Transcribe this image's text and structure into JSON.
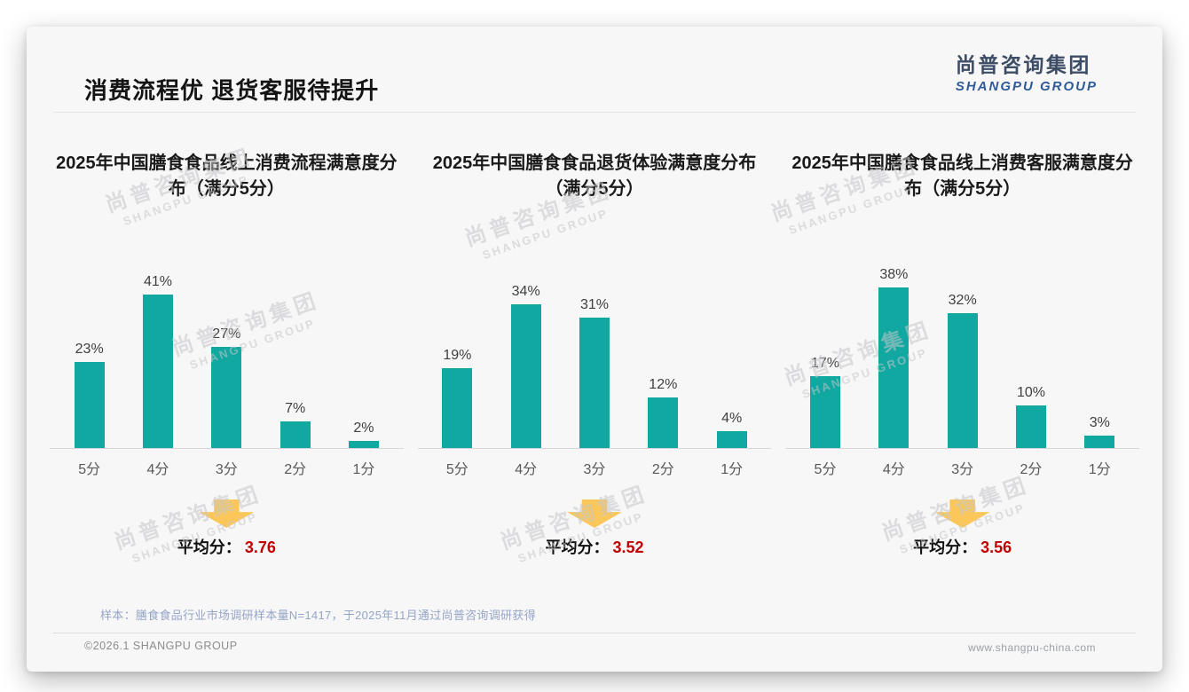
{
  "page": {
    "title": "消费流程优 退货客服待提升",
    "logo": {
      "cn": "尚普咨询集团",
      "en": "SHANGPU GROUP"
    },
    "watermark": {
      "cn": "尚普咨询集团",
      "en": "SHANGPU GROUP"
    },
    "note": "样本：膳食食品行业市场调研样本量N=1417，于2025年11月通过尚普咨询调研获得",
    "footer": {
      "left": "©2026.1 SHANGPU GROUP",
      "right": "www.shangpu-china.com"
    }
  },
  "colors": {
    "bar": "#10A8A1",
    "arrow": "#FBC75B",
    "average_value": "#C00000"
  },
  "chart_data": [
    {
      "type": "bar",
      "title": "2025年中国膳食食品线上消费流程满意度分布（满分5分）",
      "categories": [
        "5分",
        "4分",
        "3分",
        "2分",
        "1分"
      ],
      "values": [
        23,
        41,
        27,
        7,
        2
      ],
      "unit": "%",
      "value_labels": [
        "23%",
        "41%",
        "27%",
        "7%",
        "2%"
      ],
      "ylim": [
        0,
        45
      ],
      "grid": false,
      "legend": "none",
      "average_label": "平均分：",
      "average": "3.76"
    },
    {
      "type": "bar",
      "title": "2025年中国膳食食品退货体验满意度分布（满分5分）",
      "categories": [
        "5分",
        "4分",
        "3分",
        "2分",
        "1分"
      ],
      "values": [
        19,
        34,
        31,
        12,
        4
      ],
      "unit": "%",
      "value_labels": [
        "19%",
        "34%",
        "31%",
        "12%",
        "4%"
      ],
      "ylim": [
        0,
        40
      ],
      "grid": false,
      "legend": "none",
      "average_label": "平均分：",
      "average": "3.52"
    },
    {
      "type": "bar",
      "title": "2025年中国膳食食品线上消费客服满意度分布（满分5分）",
      "categories": [
        "5分",
        "4分",
        "3分",
        "2分",
        "1分"
      ],
      "values": [
        17,
        38,
        32,
        10,
        3
      ],
      "unit": "%",
      "value_labels": [
        "17%",
        "38%",
        "32%",
        "10%",
        "3%"
      ],
      "ylim": [
        0,
        40
      ],
      "grid": false,
      "legend": "none",
      "average_label": "平均分：",
      "average": "3.56"
    }
  ]
}
